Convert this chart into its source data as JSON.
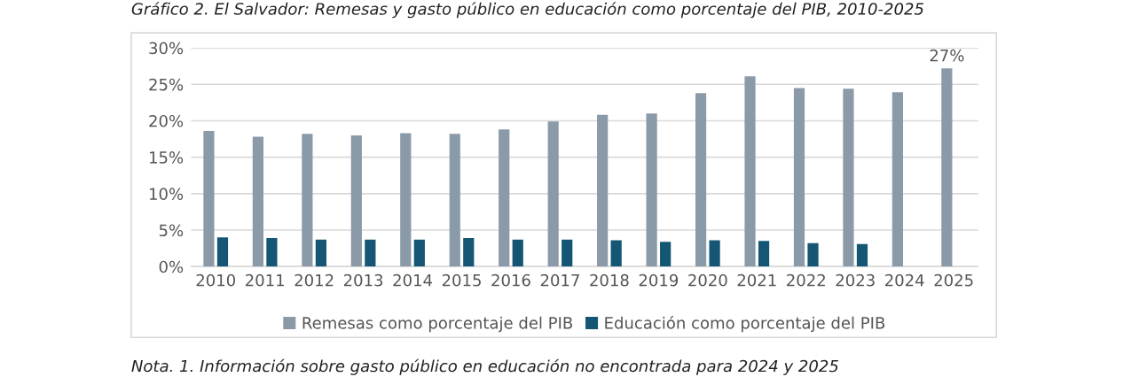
{
  "chart_data": {
    "type": "bar",
    "title": "Gráfico 2. El Salvador: Remesas y gasto público en educación como porcentaje del PIB, 2010-2025",
    "annotations": [
      "Nota. 1. Información sobre gasto público en educación no encontrada para 2024 y 2025"
    ],
    "categories": [
      "2010",
      "2011",
      "2012",
      "2013",
      "2014",
      "2015",
      "2016",
      "2017",
      "2018",
      "2019",
      "2020",
      "2021",
      "2022",
      "2023",
      "2024",
      "2025"
    ],
    "series": [
      {
        "name": "Remesas como porcentaje del PIB",
        "color": "#8a9aa8",
        "values": [
          18.6,
          17.8,
          18.2,
          18.0,
          18.3,
          18.2,
          18.8,
          19.9,
          20.8,
          21.0,
          23.8,
          26.1,
          24.5,
          24.4,
          23.9,
          27.2
        ],
        "value_labels": [
          null,
          null,
          null,
          null,
          null,
          null,
          null,
          null,
          null,
          null,
          null,
          null,
          null,
          null,
          null,
          "27%"
        ]
      },
      {
        "name": "Educación como porcentaje del PIB",
        "color": "#145673",
        "values": [
          4.0,
          3.9,
          3.7,
          3.7,
          3.7,
          3.9,
          3.7,
          3.7,
          3.6,
          3.4,
          3.6,
          3.5,
          3.2,
          3.1,
          null,
          null
        ]
      }
    ],
    "ylim": [
      0,
      30
    ],
    "yticks": [
      {
        "value": 0,
        "label": "0%"
      },
      {
        "value": 5,
        "label": "5%"
      },
      {
        "value": 10,
        "label": "10%"
      },
      {
        "value": 15,
        "label": "15%"
      },
      {
        "value": 20,
        "label": "20%"
      },
      {
        "value": 25,
        "label": "25%"
      },
      {
        "value": 30,
        "label": "30%"
      }
    ],
    "grid": "y",
    "legend": "bottom"
  }
}
